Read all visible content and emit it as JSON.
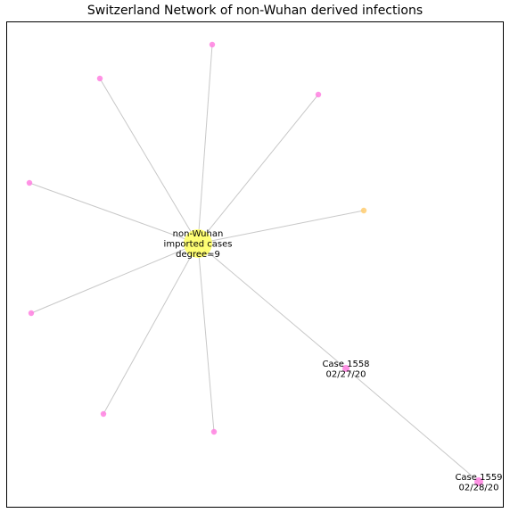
{
  "title": "Switzerland Network of non-Wuhan derived infections",
  "colors": {
    "edge": "#c8c8c8",
    "hub": "#ffff66",
    "case": "#ff80e0",
    "case_orange": "#ffcc70",
    "frame": "#000000"
  },
  "hub": {
    "label_lines": [
      "non-Wuhan",
      "imported cases",
      "degree=9"
    ]
  },
  "nodes": [
    {
      "id": "hub",
      "label_lines": [
        "non-Wuhan",
        "imported cases",
        "degree=9"
      ],
      "color": "#ffff66"
    },
    {
      "id": "n1",
      "label_lines": [],
      "color": "#ff80e0"
    },
    {
      "id": "n2",
      "label_lines": [],
      "color": "#ff80e0"
    },
    {
      "id": "n3",
      "label_lines": [],
      "color": "#ff80e0"
    },
    {
      "id": "n4",
      "label_lines": [],
      "color": "#ff80e0"
    },
    {
      "id": "n5",
      "label_lines": [],
      "color": "#ffcc70"
    },
    {
      "id": "n6",
      "label_lines": [],
      "color": "#ff80e0"
    },
    {
      "id": "n7",
      "label_lines": [],
      "color": "#ff80e0"
    },
    {
      "id": "n8",
      "label_lines": [],
      "color": "#ff80e0"
    },
    {
      "id": "c1558",
      "label_lines": [
        "Case 1558",
        "02/27/20"
      ],
      "color": "#ff80e0"
    },
    {
      "id": "c1559",
      "label_lines": [
        "Case 1559",
        "02/28/20"
      ],
      "color": "#ff80e0"
    }
  ],
  "edges": [
    [
      "hub",
      "n1"
    ],
    [
      "hub",
      "n2"
    ],
    [
      "hub",
      "n3"
    ],
    [
      "hub",
      "n4"
    ],
    [
      "hub",
      "n5"
    ],
    [
      "hub",
      "n6"
    ],
    [
      "hub",
      "n7"
    ],
    [
      "hub",
      "n8"
    ],
    [
      "hub",
      "c1558"
    ],
    [
      "c1558",
      "c1559"
    ]
  ]
}
